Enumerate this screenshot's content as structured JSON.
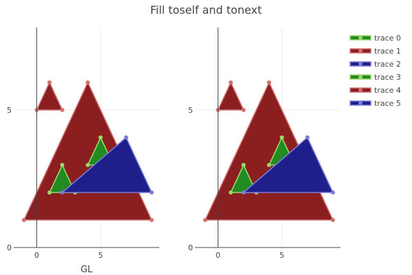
{
  "chart_data": {
    "type": "area",
    "title": "Fill toself and tonext",
    "legend_position": "top-right",
    "grid": true,
    "colors": {
      "green_fill": "#228b22",
      "green_line": "#9ad86a",
      "red_fill": "#8b1e1e",
      "red_line": "#d07070",
      "blue_fill": "#1f1f8b",
      "blue_line": "#7c7cd8",
      "axis": "#444444",
      "grid": "#eeeeee"
    },
    "subplots": [
      {
        "xlabel": "GL",
        "ylabel": "",
        "xlim": [
          -1.8,
          9.6
        ],
        "ylim": [
          0,
          8
        ],
        "x_ticks": [
          {
            "value": 0,
            "label": "0"
          },
          {
            "value": 5,
            "label": "5"
          }
        ],
        "y_ticks": [
          {
            "value": 0,
            "label": "0"
          },
          {
            "value": 5,
            "label": "5"
          }
        ],
        "series": [
          {
            "name": "trace 1",
            "color": "red",
            "x": [
              1,
              2,
              0,
              1
            ],
            "y": [
              6,
              5,
              5,
              6
            ]
          },
          {
            "name": "trace 1",
            "color": "red",
            "x": [
              4,
              9,
              -1,
              4
            ],
            "y": [
              6,
              1,
              1,
              6
            ]
          },
          {
            "name": "trace 0",
            "color": "green",
            "x": [
              2,
              3,
              1,
              2
            ],
            "y": [
              3,
              2,
              2,
              3
            ]
          },
          {
            "name": "trace 0",
            "color": "green",
            "x": [
              5,
              6,
              4,
              5
            ],
            "y": [
              4,
              3,
              3,
              4
            ]
          },
          {
            "name": "trace 2",
            "color": "blue",
            "x": [
              7,
              9,
              2,
              7
            ],
            "y": [
              4,
              2,
              2,
              4
            ]
          }
        ]
      },
      {
        "xlabel": "",
        "ylabel": "",
        "xlim": [
          -1.8,
          9.6
        ],
        "ylim": [
          0,
          8
        ],
        "x_ticks": [
          {
            "value": 0,
            "label": "0"
          },
          {
            "value": 5,
            "label": "5"
          }
        ],
        "y_ticks": [
          {
            "value": 0,
            "label": "0"
          },
          {
            "value": 5,
            "label": "5"
          }
        ],
        "series": [
          {
            "name": "trace 4",
            "color": "red",
            "x": [
              1,
              2,
              0,
              1
            ],
            "y": [
              6,
              5,
              5,
              6
            ]
          },
          {
            "name": "trace 4",
            "color": "red",
            "x": [
              4,
              9,
              -1,
              4
            ],
            "y": [
              6,
              1,
              1,
              6
            ]
          },
          {
            "name": "trace 3",
            "color": "green",
            "x": [
              2,
              3,
              1,
              2
            ],
            "y": [
              3,
              2,
              2,
              3
            ]
          },
          {
            "name": "trace 3",
            "color": "green",
            "x": [
              5,
              6,
              4,
              5
            ],
            "y": [
              4,
              3,
              3,
              4
            ]
          },
          {
            "name": "trace 5",
            "color": "blue",
            "x": [
              7,
              9,
              2,
              7
            ],
            "y": [
              4,
              2,
              2,
              4
            ]
          }
        ]
      }
    ],
    "legend": [
      {
        "name": "trace 0",
        "color": "green"
      },
      {
        "name": "trace 1",
        "color": "red"
      },
      {
        "name": "trace 2",
        "color": "blue"
      },
      {
        "name": "trace 3",
        "color": "green"
      },
      {
        "name": "trace 4",
        "color": "red"
      },
      {
        "name": "trace 5",
        "color": "blue"
      }
    ]
  }
}
